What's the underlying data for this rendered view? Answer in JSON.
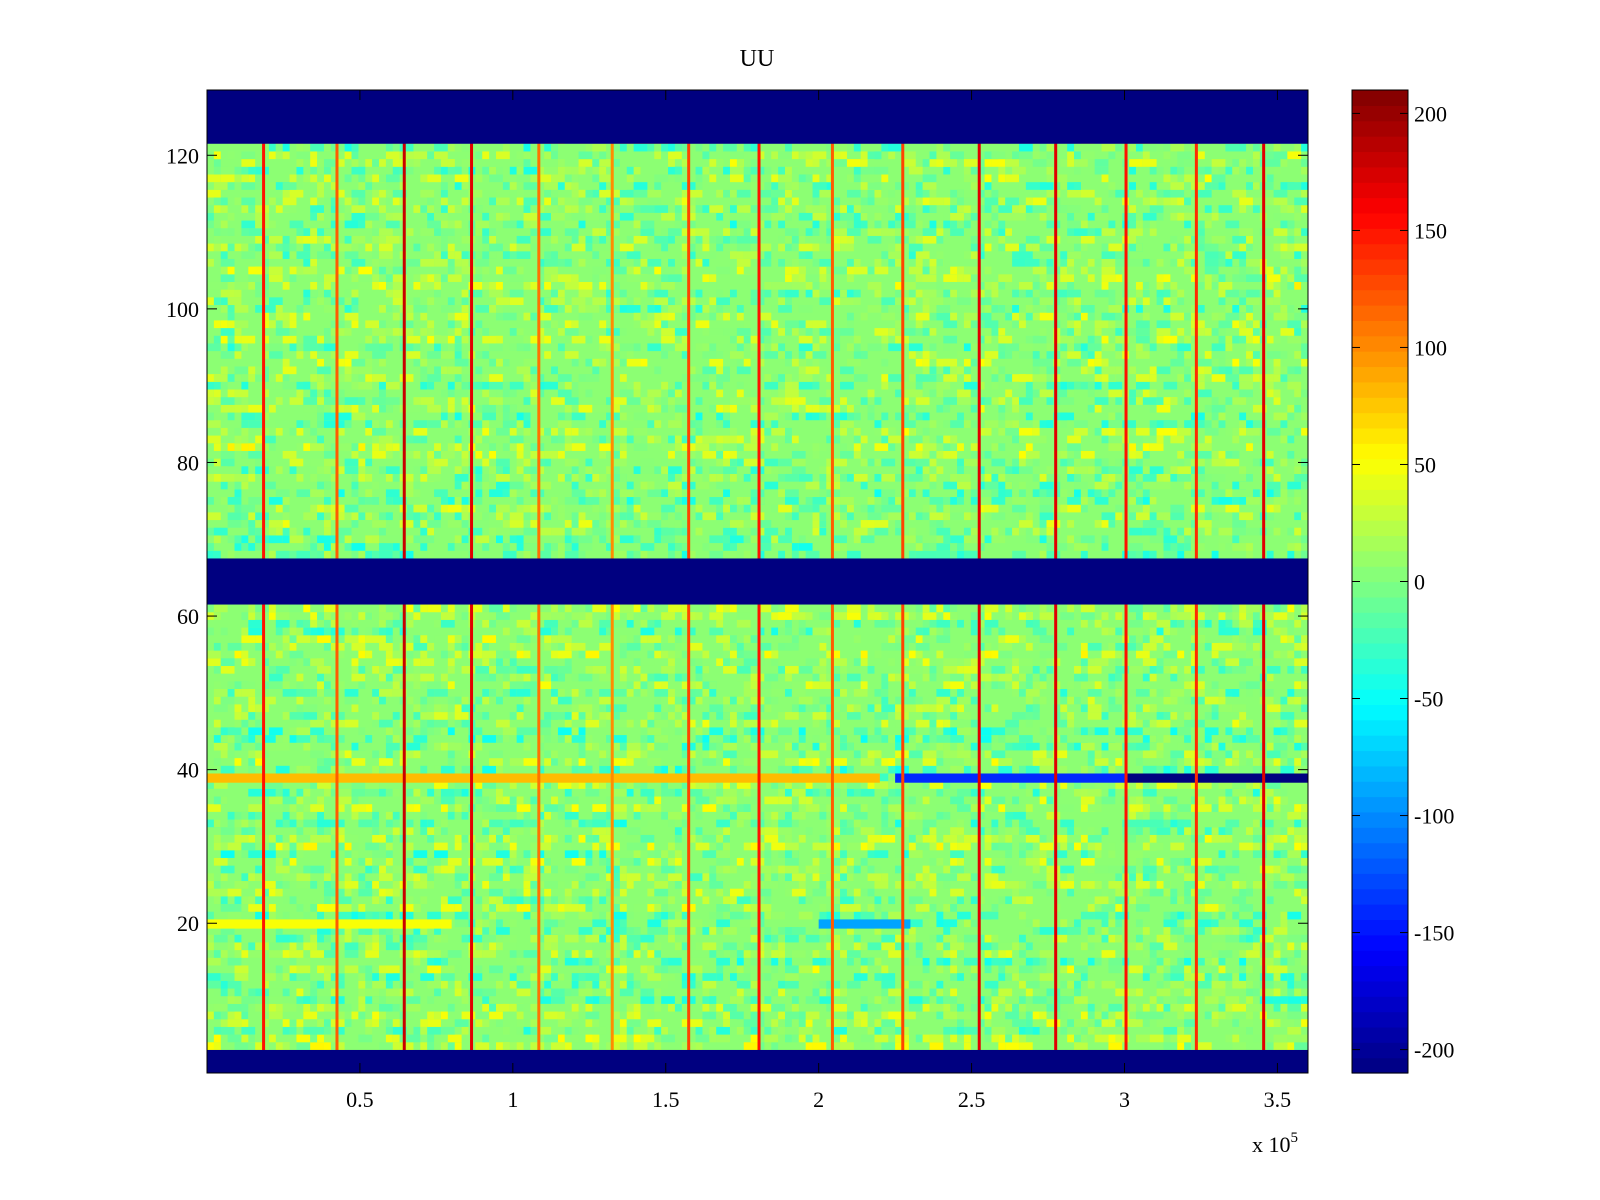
{
  "chart_data": {
    "type": "heatmap",
    "title": "UU",
    "xlabel": "",
    "ylabel": "",
    "x_range": [
      0,
      360000
    ],
    "y_range": [
      0.5,
      128.5
    ],
    "x_exponent_label": {
      "base": "x 10",
      "exponent": "5"
    },
    "x_ticks": [
      {
        "value": 50000,
        "label": "0.5"
      },
      {
        "value": 100000,
        "label": "1"
      },
      {
        "value": 150000,
        "label": "1.5"
      },
      {
        "value": 200000,
        "label": "2"
      },
      {
        "value": 250000,
        "label": "2.5"
      },
      {
        "value": 300000,
        "label": "3"
      },
      {
        "value": 350000,
        "label": "3.5"
      }
    ],
    "y_ticks": [
      {
        "value": 20,
        "label": "20"
      },
      {
        "value": 40,
        "label": "40"
      },
      {
        "value": 60,
        "label": "60"
      },
      {
        "value": 80,
        "label": "80"
      },
      {
        "value": 100,
        "label": "100"
      },
      {
        "value": 120,
        "label": "120"
      }
    ],
    "colormap": "jet",
    "color_range": [
      -210,
      210
    ],
    "colorbar_ticks": [
      {
        "value": 200,
        "label": "200"
      },
      {
        "value": 150,
        "label": "150"
      },
      {
        "value": 100,
        "label": "100"
      },
      {
        "value": 50,
        "label": "50"
      },
      {
        "value": 0,
        "label": "0"
      },
      {
        "value": -50,
        "label": "-50"
      },
      {
        "value": -100,
        "label": "-100"
      },
      {
        "value": -150,
        "label": "-150"
      },
      {
        "value": -200,
        "label": "-200"
      }
    ],
    "background_value": 5,
    "saturated_row_bands": [
      {
        "name": "top-band",
        "y_from": 121.5,
        "y_to": 128.5,
        "value": -210
      },
      {
        "name": "middle-band",
        "y_from": 61.5,
        "y_to": 67.5,
        "value": -210
      },
      {
        "name": "bottom-band",
        "y_from": 0.5,
        "y_to": 3.5,
        "value": -210
      }
    ],
    "vertical_stripes": [
      {
        "x": 18500,
        "value": 150
      },
      {
        "x": 42500,
        "value": 120
      },
      {
        "x": 64500,
        "value": 180
      },
      {
        "x": 86500,
        "value": 170
      },
      {
        "x": 108500,
        "value": 110
      },
      {
        "x": 132500,
        "value": 100
      },
      {
        "x": 157500,
        "value": 130
      },
      {
        "x": 180500,
        "value": 150
      },
      {
        "x": 204500,
        "value": 120
      },
      {
        "x": 227500,
        "value": 130
      },
      {
        "x": 252500,
        "value": 170
      },
      {
        "x": 277500,
        "value": 170
      },
      {
        "x": 300500,
        "value": 150
      },
      {
        "x": 323500,
        "value": 140
      },
      {
        "x": 345500,
        "value": 170
      }
    ],
    "horizontal_features": [
      {
        "name": "row-39-warm",
        "y": 39,
        "x_from": 0,
        "x_to": 220000,
        "value": 80
      },
      {
        "name": "row-39-cold",
        "y": 39,
        "x_from": 225000,
        "x_to": 300000,
        "value": -140
      },
      {
        "name": "row-39-saturated",
        "y": 39,
        "x_from": 300000,
        "x_to": 360000,
        "value": -210
      },
      {
        "name": "row-20-warm",
        "y": 20,
        "x_from": 0,
        "x_to": 80000,
        "value": 50
      },
      {
        "name": "row-20-cold",
        "y": 20,
        "x_from": 200000,
        "x_to": 230000,
        "value": -90
      }
    ]
  }
}
